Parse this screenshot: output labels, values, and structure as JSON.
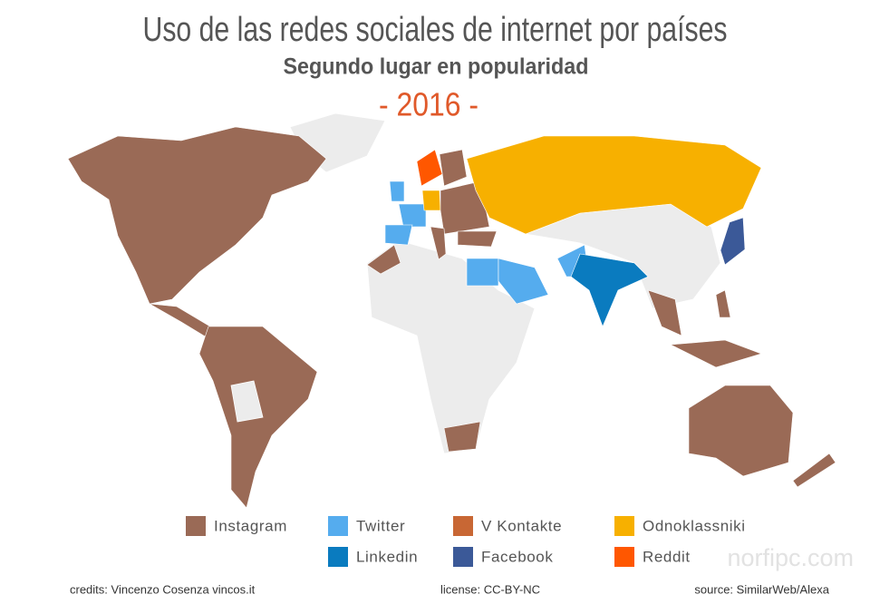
{
  "header": {
    "title": "Uso de las redes sociales de internet por países",
    "subtitle": "Segundo lugar en popularidad",
    "year": "- 2016 -"
  },
  "legend": [
    {
      "name": "Instagram",
      "color": "#9a6a56"
    },
    {
      "name": "Twitter",
      "color": "#55acee"
    },
    {
      "name": "V Kontakte",
      "color": "#c86734"
    },
    {
      "name": "Odnoklassniki",
      "color": "#f7b000"
    },
    {
      "name": "Linkedin",
      "color": "#0a7bbf"
    },
    {
      "name": "Facebook",
      "color": "#3b5998"
    },
    {
      "name": "Reddit",
      "color": "#ff5700"
    }
  ],
  "footer": {
    "credits": "credits: Vincenzo Cosenza vincos.it",
    "license": "license: CC-BY-NC",
    "source": "source: SimilarWeb/Alexa",
    "watermark": "norfipc.com"
  }
}
